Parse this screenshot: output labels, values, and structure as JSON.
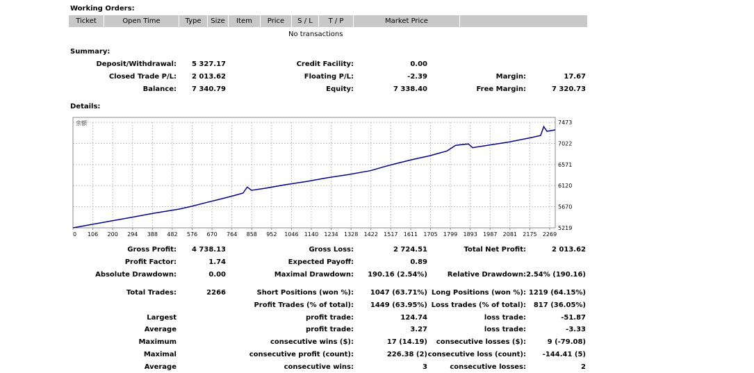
{
  "working_orders": {
    "title": "Working Orders:",
    "columns": [
      "Ticket",
      "Open Time",
      "Type",
      "Size",
      "Item",
      "Price",
      "S / L",
      "T / P",
      "Market Price",
      ""
    ],
    "empty_text": "No transactions"
  },
  "summary": {
    "title": "Summary:",
    "rows": [
      [
        {
          "label": "Deposit/Withdrawal:",
          "value": "5 327.17"
        },
        {
          "label": "Credit Facility:",
          "value": "0.00"
        },
        {
          "label": "",
          "value": ""
        }
      ],
      [
        {
          "label": "Closed Trade P/L:",
          "value": "2 013.62"
        },
        {
          "label": "Floating P/L:",
          "value": "-2.39"
        },
        {
          "label": "Margin:",
          "value": "17.67"
        }
      ],
      [
        {
          "label": "Balance:",
          "value": "7 340.79"
        },
        {
          "label": "Equity:",
          "value": "7 338.40"
        },
        {
          "label": "Free Margin:",
          "value": "7 320.73"
        }
      ]
    ]
  },
  "details": {
    "title": "Details:",
    "stats": [
      [
        "Gross Profit:",
        "4 738.13",
        "Gross Loss:",
        "2 724.51",
        "Total Net Profit:",
        "2 013.62"
      ],
      [
        "Profit Factor:",
        "1.74",
        "Expected Payoff:",
        "0.89",
        "",
        ""
      ],
      [
        "Absolute Drawdown:",
        "0.00",
        "Maximal Drawdown:",
        "190.16 (2.54%)",
        "Relative Drawdown:",
        "2.54% (190.16)"
      ],
      [
        "Total Trades:",
        "2266",
        "Short Positions (won %):",
        "1047 (63.71%)",
        "Long Positions (won %):",
        "1219 (64.15%)"
      ],
      [
        "",
        "",
        "Profit Trades (% of total):",
        "1449 (63.95%)",
        "Loss trades (% of total):",
        "817 (36.05%)"
      ],
      [
        "Largest",
        "",
        "profit trade:",
        "124.74",
        "loss trade:",
        "-51.87"
      ],
      [
        "Average",
        "",
        "profit trade:",
        "3.27",
        "loss trade:",
        "-3.33"
      ],
      [
        "Maximum",
        "",
        "consecutive wins ($):",
        "17 (14.19)",
        "consecutive losses ($):",
        "9 (-79.08)"
      ],
      [
        "Maximal",
        "",
        "consecutive profit (count):",
        "226.38 (2)",
        "consecutive loss (count):",
        "-144.41 (5)"
      ],
      [
        "Average",
        "",
        "consecutive wins:",
        "3",
        "consecutive losses:",
        "2"
      ]
    ]
  },
  "colors": {
    "line": "#00008b",
    "header_bg": "#c8c8c8",
    "grid": "#c0c0c0"
  },
  "chart_data": {
    "type": "line",
    "legend_label": "余额",
    "x_ticks": [
      "0",
      "106",
      "200",
      "294",
      "388",
      "482",
      "576",
      "670",
      "764",
      "858",
      "952",
      "1046",
      "1140",
      "1234",
      "1328",
      "1422",
      "1517",
      "1611",
      "1705",
      "1799",
      "1893",
      "1987",
      "2081",
      "2175",
      "2269"
    ],
    "y_ticks": [
      "5219",
      "5670",
      "6120",
      "6571",
      "7022",
      "7473"
    ],
    "xlim": [
      0,
      2269
    ],
    "ylim": [
      5219,
      7473
    ],
    "grid": true,
    "series": [
      {
        "values": [
          [
            0,
            5219
          ],
          [
            50,
            5260
          ],
          [
            150,
            5340
          ],
          [
            260,
            5430
          ],
          [
            380,
            5530
          ],
          [
            500,
            5620
          ],
          [
            560,
            5680
          ],
          [
            620,
            5750
          ],
          [
            700,
            5840
          ],
          [
            760,
            5910
          ],
          [
            800,
            5960
          ],
          [
            820,
            6090
          ],
          [
            840,
            6020
          ],
          [
            900,
            6060
          ],
          [
            1000,
            6140
          ],
          [
            1100,
            6210
          ],
          [
            1200,
            6290
          ],
          [
            1300,
            6360
          ],
          [
            1400,
            6440
          ],
          [
            1460,
            6520
          ],
          [
            1520,
            6590
          ],
          [
            1600,
            6680
          ],
          [
            1680,
            6760
          ],
          [
            1760,
            6860
          ],
          [
            1800,
            6980
          ],
          [
            1860,
            7010
          ],
          [
            1880,
            6930
          ],
          [
            1950,
            6980
          ],
          [
            2050,
            7050
          ],
          [
            2150,
            7140
          ],
          [
            2200,
            7190
          ],
          [
            2215,
            7380
          ],
          [
            2230,
            7280
          ],
          [
            2269,
            7310
          ]
        ]
      }
    ]
  }
}
